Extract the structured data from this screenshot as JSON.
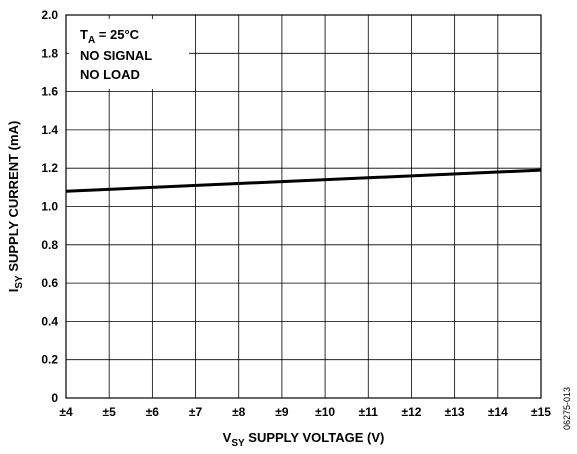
{
  "chart_data": {
    "type": "line",
    "xlabel": {
      "main": "V",
      "sub": "SY",
      "rest": " SUPPLY VOLTAGE (V)"
    },
    "ylabel": {
      "main": "I",
      "sub": "SY",
      "rest": " SUPPLY CURRENT (mA)"
    },
    "x_tick_labels": [
      "±4",
      "±5",
      "±6",
      "±7",
      "±8",
      "±9",
      "±10",
      "±11",
      "±12",
      "±13",
      "±14",
      "±15"
    ],
    "x_values": [
      4,
      5,
      6,
      7,
      8,
      9,
      10,
      11,
      12,
      13,
      14,
      15
    ],
    "y_tick_labels": [
      "0",
      "0.2",
      "0.4",
      "0.6",
      "0.8",
      "1.0",
      "1.2",
      "1.4",
      "1.6",
      "1.8",
      "2.0"
    ],
    "xlim": [
      4,
      15
    ],
    "ylim": [
      0,
      2.0
    ],
    "grid": true,
    "series": [
      {
        "x": [
          4,
          15
        ],
        "y": [
          1.08,
          1.19
        ],
        "color": "#000000"
      }
    ],
    "annotation": {
      "line1": {
        "main": "T",
        "sub": "A",
        "rest": " = 25°C"
      },
      "line2": "NO SIGNAL",
      "line3": "NO LOAD",
      "position": "top-left"
    },
    "figure_id": "06275-013"
  }
}
